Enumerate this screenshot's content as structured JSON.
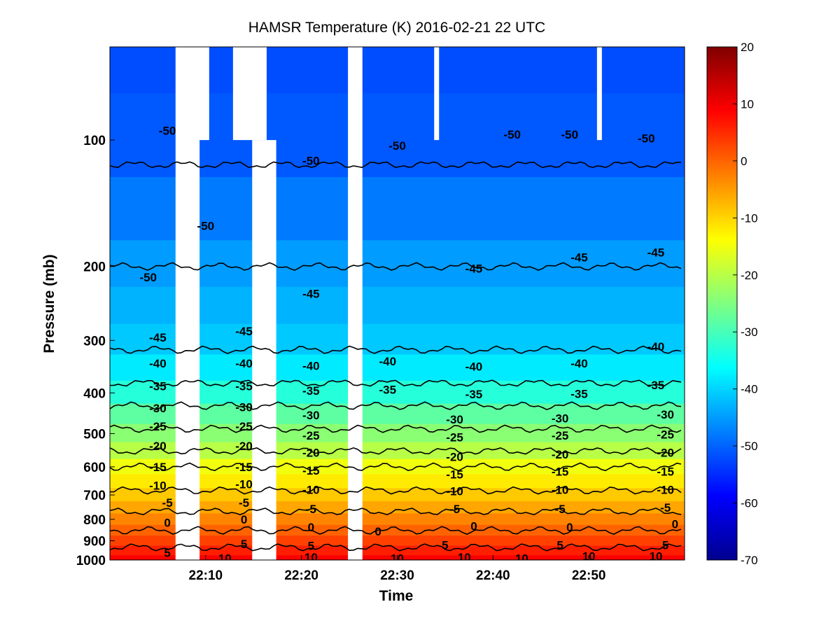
{
  "chart_data": {
    "type": "heatmap",
    "title": "HAMSR  Temperature (K) 2016-02-21 22 UTC",
    "xlabel": "Time",
    "ylabel": "Pressure (mb)",
    "x_range": [
      "22:00",
      "23:00"
    ],
    "x_ticks": [
      "22:10",
      "22:20",
      "22:30",
      "22:40",
      "22:50"
    ],
    "y_scale": "log",
    "y_range": [
      1000,
      60
    ],
    "y_ticks": [
      "100",
      "200",
      "300",
      "400",
      "500",
      "600",
      "700",
      "800",
      "900",
      "1000"
    ],
    "colorbar": {
      "range": [
        -70,
        20
      ],
      "ticks": [
        "20",
        "10",
        "0",
        "-10",
        "-20",
        "-30",
        "-40",
        "-50",
        "-60",
        "-70"
      ],
      "colormap": "jet"
    },
    "contour_levels": [
      -50,
      -45,
      -40,
      -35,
      -30,
      -25,
      -20,
      -15,
      -10,
      -5,
      0,
      5,
      10
    ],
    "temperature_profile": [
      {
        "p": 60,
        "t": -52
      },
      {
        "p": 100,
        "t": -51
      },
      {
        "p": 150,
        "t": -48
      },
      {
        "p": 200,
        "t": -45
      },
      {
        "p": 250,
        "t": -43
      },
      {
        "p": 300,
        "t": -41
      },
      {
        "p": 350,
        "t": -38
      },
      {
        "p": 400,
        "t": -33
      },
      {
        "p": 450,
        "t": -28
      },
      {
        "p": 500,
        "t": -24
      },
      {
        "p": 550,
        "t": -20
      },
      {
        "p": 600,
        "t": -15
      },
      {
        "p": 650,
        "t": -12
      },
      {
        "p": 700,
        "t": -9
      },
      {
        "p": 750,
        "t": -6
      },
      {
        "p": 800,
        "t": -3
      },
      {
        "p": 850,
        "t": 0
      },
      {
        "p": 900,
        "t": 3
      },
      {
        "p": 950,
        "t": 6
      },
      {
        "p": 1000,
        "t": 9
      }
    ],
    "data_gaps": [
      {
        "start": "22:07",
        "end": "22:09",
        "pressure_from": 60,
        "pressure_to": 1000
      },
      {
        "start": "22:09",
        "end": "22:10",
        "pressure_from": 60,
        "pressure_to": 100
      },
      {
        "start": "22:13",
        "end": "22:16",
        "pressure_from": 60,
        "pressure_to": 100
      },
      {
        "start": "22:15",
        "end": "22:17",
        "pressure_from": 100,
        "pressure_to": 1000
      },
      {
        "start": "22:25",
        "end": "22:26",
        "pressure_from": 60,
        "pressure_to": 1000
      },
      {
        "start": "22:34",
        "end": "22:34",
        "pressure_from": 60,
        "pressure_to": 100
      },
      {
        "start": "22:51",
        "end": "22:51",
        "pressure_from": 60,
        "pressure_to": 100
      }
    ],
    "contour_labels": [
      {
        "text": "-50",
        "time": "22:06",
        "p": 95
      },
      {
        "text": "-50",
        "time": "22:21",
        "p": 112
      },
      {
        "text": "-50",
        "time": "22:30",
        "p": 103
      },
      {
        "text": "-50",
        "time": "22:42",
        "p": 97
      },
      {
        "text": "-50",
        "time": "22:48",
        "p": 97
      },
      {
        "text": "-50",
        "time": "22:56",
        "p": 99
      },
      {
        "text": "-50",
        "time": "22:10",
        "p": 160
      },
      {
        "text": "-50",
        "time": "22:04",
        "p": 212
      },
      {
        "text": "-45",
        "time": "22:21",
        "p": 232
      },
      {
        "text": "-45",
        "time": "22:38",
        "p": 202
      },
      {
        "text": "-45",
        "time": "22:49",
        "p": 190
      },
      {
        "text": "-45",
        "time": "22:57",
        "p": 185
      },
      {
        "text": "-45",
        "time": "22:05",
        "p": 295
      },
      {
        "text": "-45",
        "time": "22:14",
        "p": 285
      },
      {
        "text": "-40",
        "time": "22:57",
        "p": 310
      },
      {
        "text": "-40",
        "time": "22:05",
        "p": 340
      },
      {
        "text": "-40",
        "time": "22:14",
        "p": 340
      },
      {
        "text": "-40",
        "time": "22:21",
        "p": 345
      },
      {
        "text": "-40",
        "time": "22:29",
        "p": 336
      },
      {
        "text": "-40",
        "time": "22:38",
        "p": 346
      },
      {
        "text": "-40",
        "time": "22:49",
        "p": 340
      },
      {
        "text": "-35",
        "time": "22:05",
        "p": 385
      },
      {
        "text": "-35",
        "time": "22:14",
        "p": 385
      },
      {
        "text": "-35",
        "time": "22:21",
        "p": 395
      },
      {
        "text": "-35",
        "time": "22:29",
        "p": 393
      },
      {
        "text": "-35",
        "time": "22:38",
        "p": 403
      },
      {
        "text": "-35",
        "time": "22:49",
        "p": 402
      },
      {
        "text": "-35",
        "time": "22:57",
        "p": 383
      },
      {
        "text": "-30",
        "time": "22:05",
        "p": 435
      },
      {
        "text": "-30",
        "time": "22:14",
        "p": 432
      },
      {
        "text": "-30",
        "time": "22:21",
        "p": 452
      },
      {
        "text": "-30",
        "time": "22:36",
        "p": 462
      },
      {
        "text": "-30",
        "time": "22:47",
        "p": 460
      },
      {
        "text": "-30",
        "time": "22:58",
        "p": 450
      },
      {
        "text": "-25",
        "time": "22:05",
        "p": 480
      },
      {
        "text": "-25",
        "time": "22:14",
        "p": 480
      },
      {
        "text": "-25",
        "time": "22:21",
        "p": 505
      },
      {
        "text": "-25",
        "time": "22:36",
        "p": 510
      },
      {
        "text": "-25",
        "time": "22:47",
        "p": 505
      },
      {
        "text": "-25",
        "time": "22:58",
        "p": 502
      },
      {
        "text": "-20",
        "time": "22:05",
        "p": 535
      },
      {
        "text": "-20",
        "time": "22:14",
        "p": 535
      },
      {
        "text": "-20",
        "time": "22:21",
        "p": 555
      },
      {
        "text": "-20",
        "time": "22:36",
        "p": 568
      },
      {
        "text": "-20",
        "time": "22:47",
        "p": 560
      },
      {
        "text": "-20",
        "time": "22:58",
        "p": 555
      },
      {
        "text": "-15",
        "time": "22:05",
        "p": 600
      },
      {
        "text": "-15",
        "time": "22:14",
        "p": 600
      },
      {
        "text": "-15",
        "time": "22:21",
        "p": 612
      },
      {
        "text": "-15",
        "time": "22:36",
        "p": 625
      },
      {
        "text": "-15",
        "time": "22:47",
        "p": 615
      },
      {
        "text": "-15",
        "time": "22:58",
        "p": 615
      },
      {
        "text": "-10",
        "time": "22:05",
        "p": 665
      },
      {
        "text": "-10",
        "time": "22:14",
        "p": 660
      },
      {
        "text": "-10",
        "time": "22:21",
        "p": 680
      },
      {
        "text": "-10",
        "time": "22:36",
        "p": 685
      },
      {
        "text": "-10",
        "time": "22:47",
        "p": 680
      },
      {
        "text": "-10",
        "time": "22:58",
        "p": 680
      },
      {
        "text": "-5",
        "time": "22:06",
        "p": 730
      },
      {
        "text": "-5",
        "time": "22:14",
        "p": 730
      },
      {
        "text": "-5",
        "time": "22:21",
        "p": 755
      },
      {
        "text": "-5",
        "time": "22:36",
        "p": 755
      },
      {
        "text": "-5",
        "time": "22:47",
        "p": 755
      },
      {
        "text": "-5",
        "time": "22:58",
        "p": 750
      },
      {
        "text": "0",
        "time": "22:06",
        "p": 815
      },
      {
        "text": "0",
        "time": "22:14",
        "p": 800
      },
      {
        "text": "0",
        "time": "22:21",
        "p": 835
      },
      {
        "text": "0",
        "time": "22:28",
        "p": 855
      },
      {
        "text": "0",
        "time": "22:38",
        "p": 830
      },
      {
        "text": "0",
        "time": "22:48",
        "p": 835
      },
      {
        "text": "0",
        "time": "22:59",
        "p": 820
      },
      {
        "text": "5",
        "time": "22:06",
        "p": 960
      },
      {
        "text": "5",
        "time": "22:14",
        "p": 915
      },
      {
        "text": "5",
        "time": "22:21",
        "p": 925
      },
      {
        "text": "5",
        "time": "22:35",
        "p": 920
      },
      {
        "text": "5",
        "time": "22:47",
        "p": 920
      },
      {
        "text": "5",
        "time": "22:58",
        "p": 920
      },
      {
        "text": "10",
        "time": "22:12",
        "p": 990
      },
      {
        "text": "10",
        "time": "22:21",
        "p": 985
      },
      {
        "text": "10",
        "time": "22:30",
        "p": 990
      },
      {
        "text": "10",
        "time": "22:37",
        "p": 985
      },
      {
        "text": "10",
        "time": "22:43",
        "p": 990
      },
      {
        "text": "10",
        "time": "22:50",
        "p": 980
      },
      {
        "text": "10",
        "time": "22:57",
        "p": 980
      }
    ]
  }
}
